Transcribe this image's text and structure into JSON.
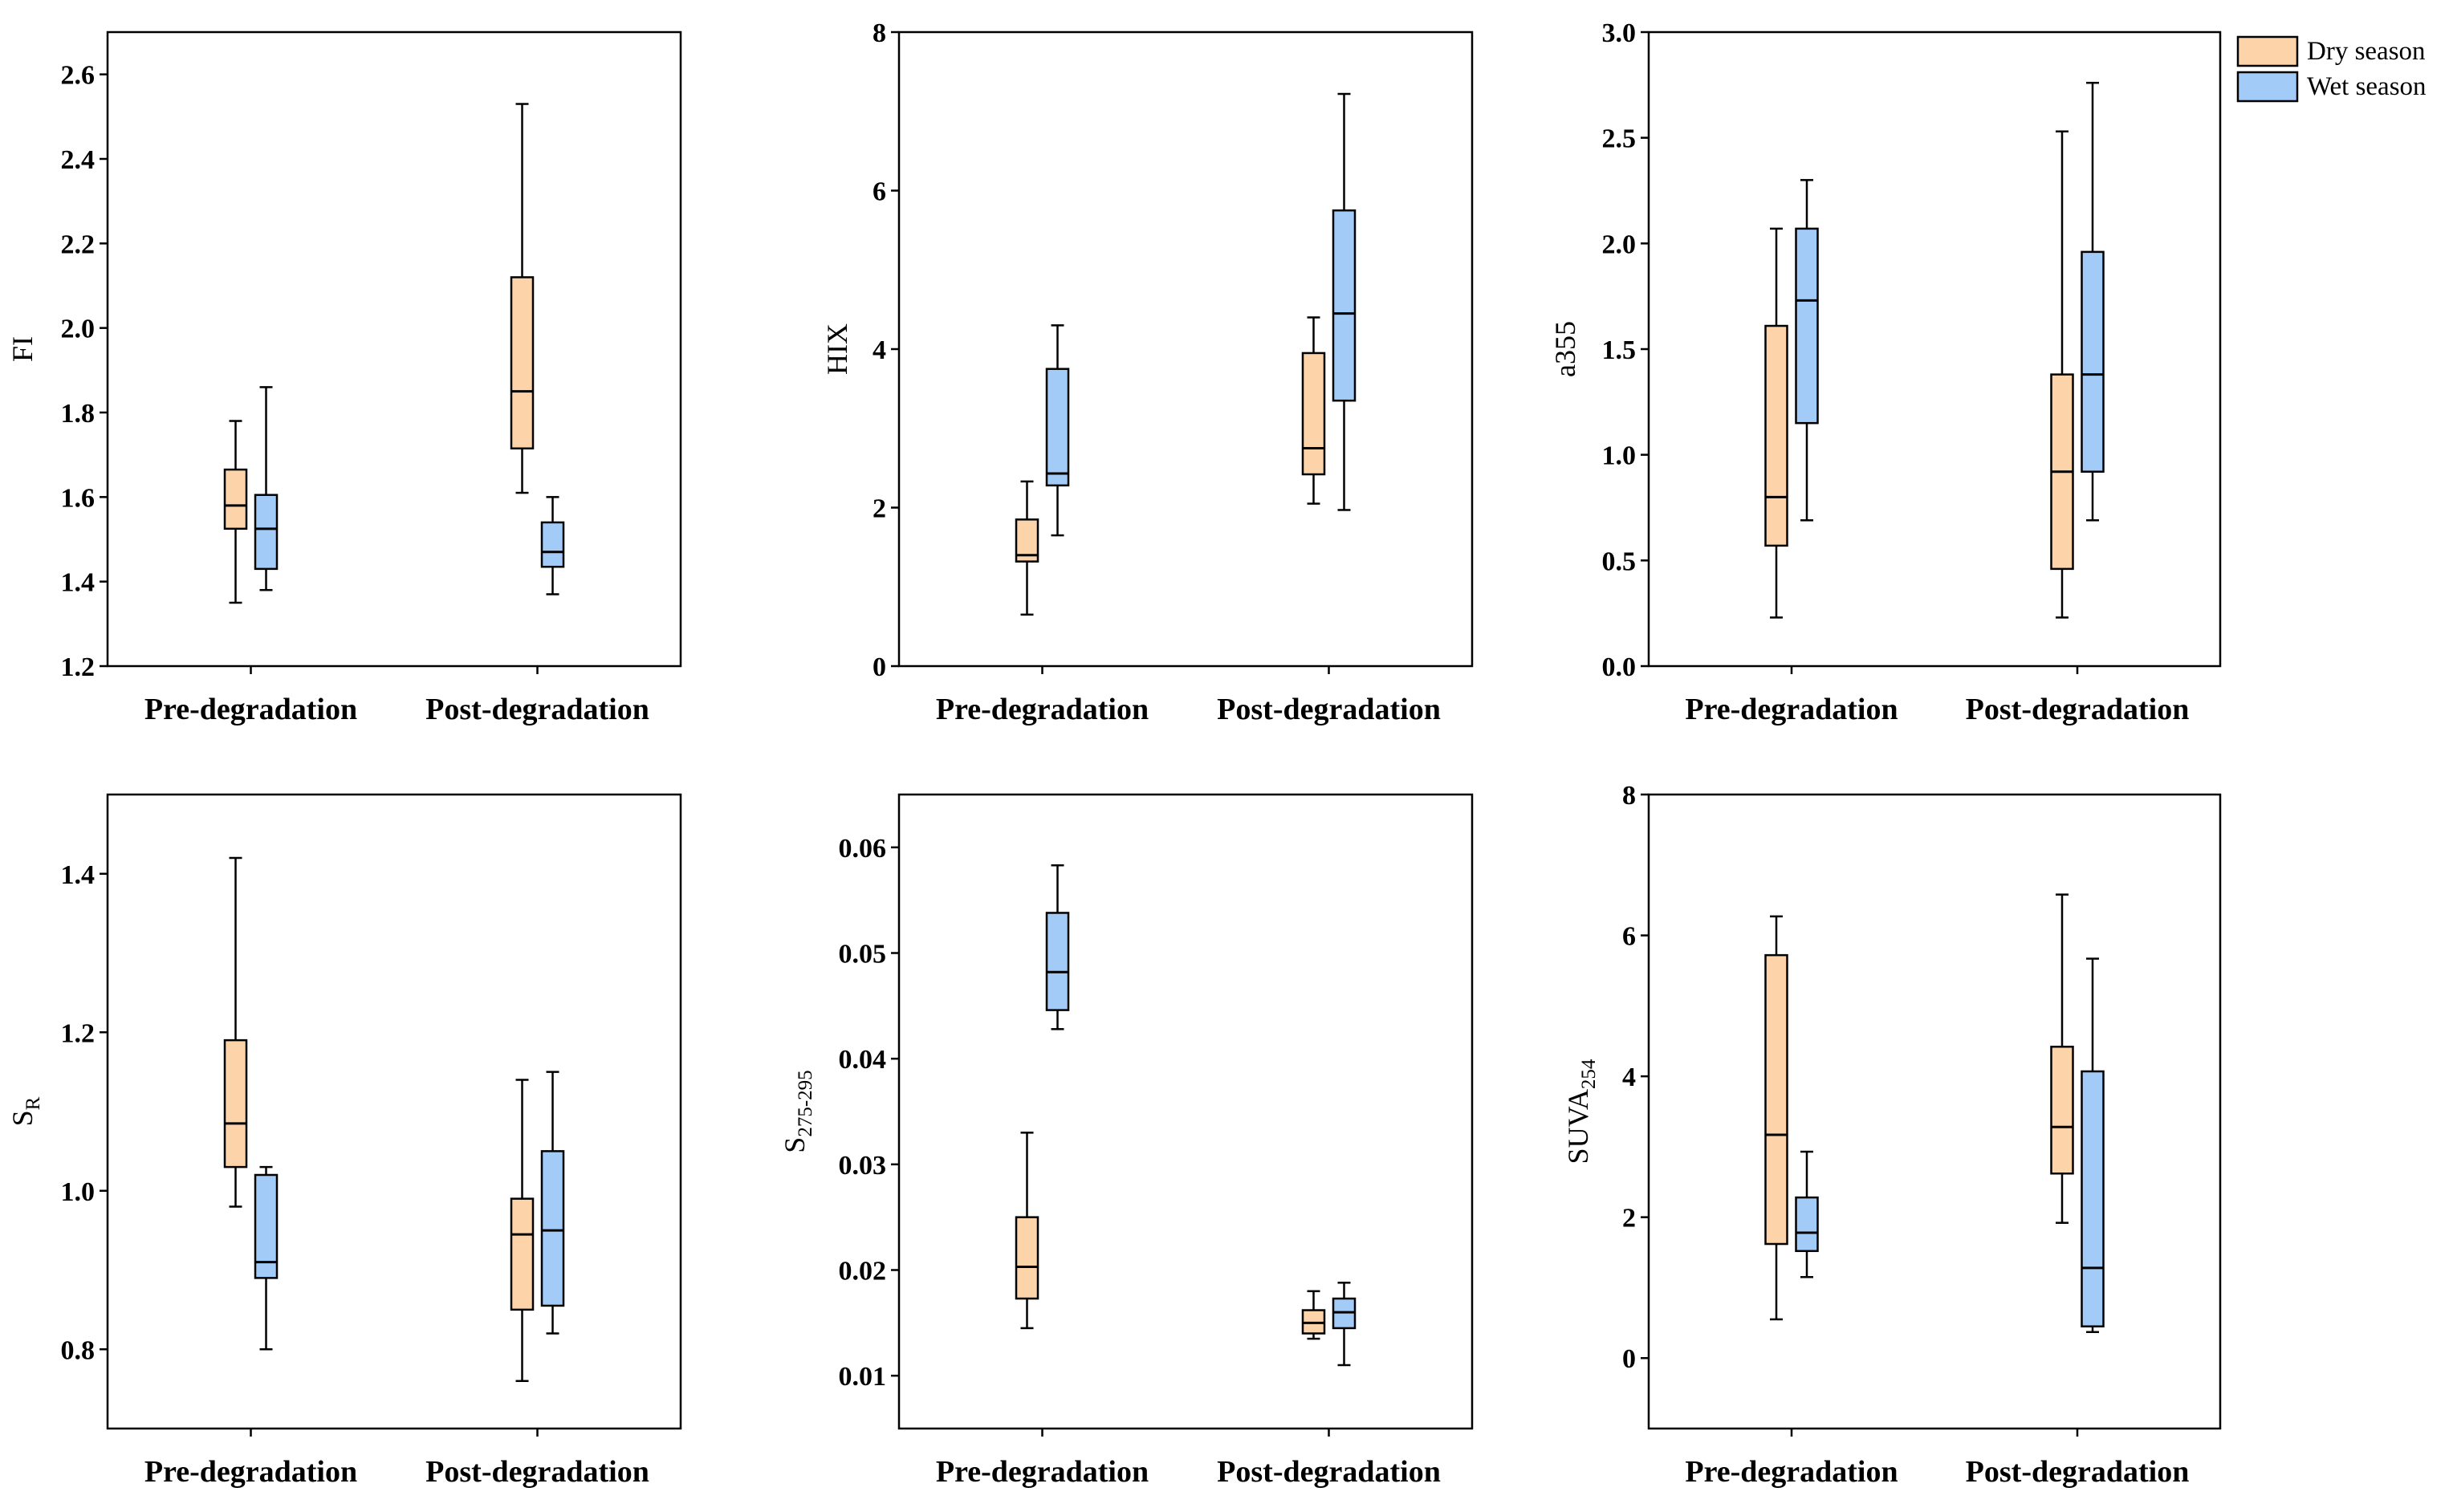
{
  "chart_data": [
    {
      "type": "box",
      "panel": "top-left",
      "title": "",
      "ylabel": "FI",
      "categories": [
        "Pre-degradation",
        "Post-degradation"
      ],
      "ylim": [
        1.2,
        2.7
      ],
      "yticks": [
        1.2,
        1.4,
        1.6,
        1.8,
        2.0,
        2.2,
        2.4,
        2.6
      ],
      "ytick_labels": [
        "1.2",
        "1.4",
        "1.6",
        "1.8",
        "2.0",
        "2.2",
        "2.4",
        "2.6"
      ],
      "series": [
        {
          "name": "Dry season",
          "color": "#FDD3A9",
          "boxes": [
            {
              "min": 1.35,
              "q1": 1.525,
              "median": 1.58,
              "q3": 1.665,
              "max": 1.78
            },
            {
              "min": 1.61,
              "q1": 1.715,
              "median": 1.85,
              "q3": 2.12,
              "max": 2.53
            }
          ]
        },
        {
          "name": "Wet season",
          "color": "#A3CBF7",
          "boxes": [
            {
              "min": 1.38,
              "q1": 1.43,
              "median": 1.525,
              "q3": 1.605,
              "max": 1.86
            },
            {
              "min": 1.37,
              "q1": 1.435,
              "median": 1.47,
              "q3": 1.54,
              "max": 1.6
            }
          ]
        }
      ]
    },
    {
      "type": "box",
      "panel": "top-middle",
      "title": "",
      "ylabel": "HIX",
      "categories": [
        "Pre-degradation",
        "Post-degradation"
      ],
      "ylim": [
        0,
        8
      ],
      "yticks": [
        0,
        2,
        4,
        6,
        8
      ],
      "ytick_labels": [
        "0",
        "2",
        "4",
        "6",
        "8"
      ],
      "series": [
        {
          "name": "Dry season",
          "color": "#FDD3A9",
          "boxes": [
            {
              "min": 0.65,
              "q1": 1.32,
              "median": 1.4,
              "q3": 1.85,
              "max": 2.33
            },
            {
              "min": 2.05,
              "q1": 2.42,
              "median": 2.75,
              "q3": 3.95,
              "max": 4.4
            }
          ]
        },
        {
          "name": "Wet season",
          "color": "#A3CBF7",
          "boxes": [
            {
              "min": 1.65,
              "q1": 2.28,
              "median": 2.43,
              "q3": 3.75,
              "max": 4.3
            },
            {
              "min": 1.97,
              "q1": 3.35,
              "median": 4.45,
              "q3": 5.75,
              "max": 7.22
            }
          ]
        }
      ]
    },
    {
      "type": "box",
      "panel": "top-right",
      "title": "",
      "ylabel": "a355",
      "categories": [
        "Pre-degradation",
        "Post-degradation"
      ],
      "ylim": [
        0,
        3.0
      ],
      "yticks": [
        0,
        0.5,
        1.0,
        1.5,
        2.0,
        2.5,
        3.0
      ],
      "ytick_labels": [
        "0.0",
        "0.5",
        "1.0",
        "1.5",
        "2.0",
        "2.5",
        "3.0"
      ],
      "series": [
        {
          "name": "Dry season",
          "color": "#FDD3A9",
          "boxes": [
            {
              "min": 0.23,
              "q1": 0.57,
              "median": 0.8,
              "q3": 1.61,
              "max": 2.07
            },
            {
              "min": 0.23,
              "q1": 0.46,
              "median": 0.92,
              "q3": 1.38,
              "max": 2.53
            }
          ]
        },
        {
          "name": "Wet season",
          "color": "#A3CBF7",
          "boxes": [
            {
              "min": 0.69,
              "q1": 1.15,
              "median": 1.73,
              "q3": 2.07,
              "max": 2.3
            },
            {
              "min": 0.69,
              "q1": 0.92,
              "median": 1.38,
              "q3": 1.96,
              "max": 2.76
            }
          ]
        }
      ],
      "legend": {
        "position": "top-right",
        "entries": [
          "Dry season",
          "Wet season"
        ]
      }
    },
    {
      "type": "box",
      "panel": "bottom-left",
      "title": "",
      "ylabel": "S",
      "ylabel_subscript": "R",
      "categories": [
        "Pre-degradation",
        "Post-degradation"
      ],
      "ylim": [
        0.7,
        1.5
      ],
      "yticks": [
        0.8,
        1.0,
        1.2,
        1.4
      ],
      "ytick_labels": [
        "0.8",
        "1.0",
        "1.2",
        "1.4"
      ],
      "series": [
        {
          "name": "Dry season",
          "color": "#FDD3A9",
          "boxes": [
            {
              "min": 0.98,
              "q1": 1.03,
              "median": 1.085,
              "q3": 1.19,
              "max": 1.42
            },
            {
              "min": 0.76,
              "q1": 0.85,
              "median": 0.945,
              "q3": 0.99,
              "max": 1.14
            }
          ]
        },
        {
          "name": "Wet season",
          "color": "#A3CBF7",
          "boxes": [
            {
              "min": 0.8,
              "q1": 0.89,
              "median": 0.91,
              "q3": 1.02,
              "max": 1.03
            },
            {
              "min": 0.82,
              "q1": 0.855,
              "median": 0.95,
              "q3": 1.05,
              "max": 1.15
            }
          ]
        }
      ]
    },
    {
      "type": "box",
      "panel": "bottom-middle",
      "title": "",
      "ylabel": "S",
      "ylabel_subscript": "275-295",
      "categories": [
        "Pre-degradation",
        "Post-degradation"
      ],
      "ylim": [
        0.005,
        0.065
      ],
      "yticks": [
        0.01,
        0.02,
        0.03,
        0.04,
        0.05,
        0.06
      ],
      "ytick_labels": [
        "0.01",
        "0.02",
        "0.03",
        "0.04",
        "0.05",
        "0.06"
      ],
      "series": [
        {
          "name": "Dry season",
          "color": "#FDD3A9",
          "boxes": [
            {
              "min": 0.0145,
              "q1": 0.0173,
              "median": 0.0203,
              "q3": 0.025,
              "max": 0.033
            },
            {
              "min": 0.0135,
              "q1": 0.014,
              "median": 0.015,
              "q3": 0.0162,
              "max": 0.018
            }
          ]
        },
        {
          "name": "Wet season",
          "color": "#A3CBF7",
          "boxes": [
            {
              "min": 0.0428,
              "q1": 0.0446,
              "median": 0.0482,
              "q3": 0.0538,
              "max": 0.0583
            },
            {
              "min": 0.011,
              "q1": 0.0145,
              "median": 0.016,
              "q3": 0.0173,
              "max": 0.0188
            }
          ]
        }
      ]
    },
    {
      "type": "box",
      "panel": "bottom-right",
      "title": "",
      "ylabel": "SUVA",
      "ylabel_subscript": "254",
      "categories": [
        "Pre-degradation",
        "Post-degradation"
      ],
      "ylim": [
        -1,
        8
      ],
      "yticks": [
        0,
        2,
        4,
        6,
        8
      ],
      "ytick_labels": [
        "0",
        "2",
        "4",
        "6",
        "8"
      ],
      "series": [
        {
          "name": "Dry season",
          "color": "#FDD3A9",
          "boxes": [
            {
              "min": 0.55,
              "q1": 1.62,
              "median": 3.17,
              "q3": 5.72,
              "max": 6.27
            },
            {
              "min": 1.92,
              "q1": 2.62,
              "median": 3.28,
              "q3": 4.42,
              "max": 6.58
            }
          ]
        },
        {
          "name": "Wet season",
          "color": "#A3CBF7",
          "boxes": [
            {
              "min": 1.15,
              "q1": 1.52,
              "median": 1.78,
              "q3": 2.28,
              "max": 2.93
            },
            {
              "min": 0.37,
              "q1": 0.45,
              "median": 1.28,
              "q3": 4.07,
              "max": 5.67
            }
          ]
        }
      ]
    }
  ]
}
